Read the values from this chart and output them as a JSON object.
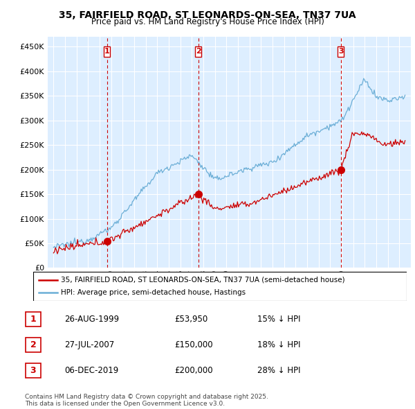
{
  "title": "35, FAIRFIELD ROAD, ST LEONARDS-ON-SEA, TN37 7UA",
  "subtitle": "Price paid vs. HM Land Registry's House Price Index (HPI)",
  "legend_line1": "35, FAIRFIELD ROAD, ST LEONARDS-ON-SEA, TN37 7UA (semi-detached house)",
  "legend_line2": "HPI: Average price, semi-detached house, Hastings",
  "sale_color": "#cc0000",
  "hpi_color": "#6baed6",
  "bg_color": "#ddeeff",
  "sale_times": [
    1999.65,
    2007.55,
    2019.92
  ],
  "sale_prices": [
    53950,
    150000,
    200000
  ],
  "sale_labels": [
    "1",
    "2",
    "3"
  ],
  "vline_color": "#cc0000",
  "ylim": [
    0,
    470000
  ],
  "yticks": [
    0,
    50000,
    100000,
    150000,
    200000,
    250000,
    300000,
    350000,
    400000,
    450000
  ],
  "xlim_left": 1994.5,
  "xlim_right": 2026.0,
  "footnote": "Contains HM Land Registry data © Crown copyright and database right 2025.\nThis data is licensed under the Open Government Licence v3.0.",
  "table_entries": [
    {
      "num": "1",
      "date": "26-AUG-1999",
      "price": "£53,950",
      "pct": "15% ↓ HPI"
    },
    {
      "num": "2",
      "date": "27-JUL-2007",
      "price": "£150,000",
      "pct": "18% ↓ HPI"
    },
    {
      "num": "3",
      "date": "06-DEC-2019",
      "price": "£200,000",
      "pct": "28% ↓ HPI"
    }
  ]
}
